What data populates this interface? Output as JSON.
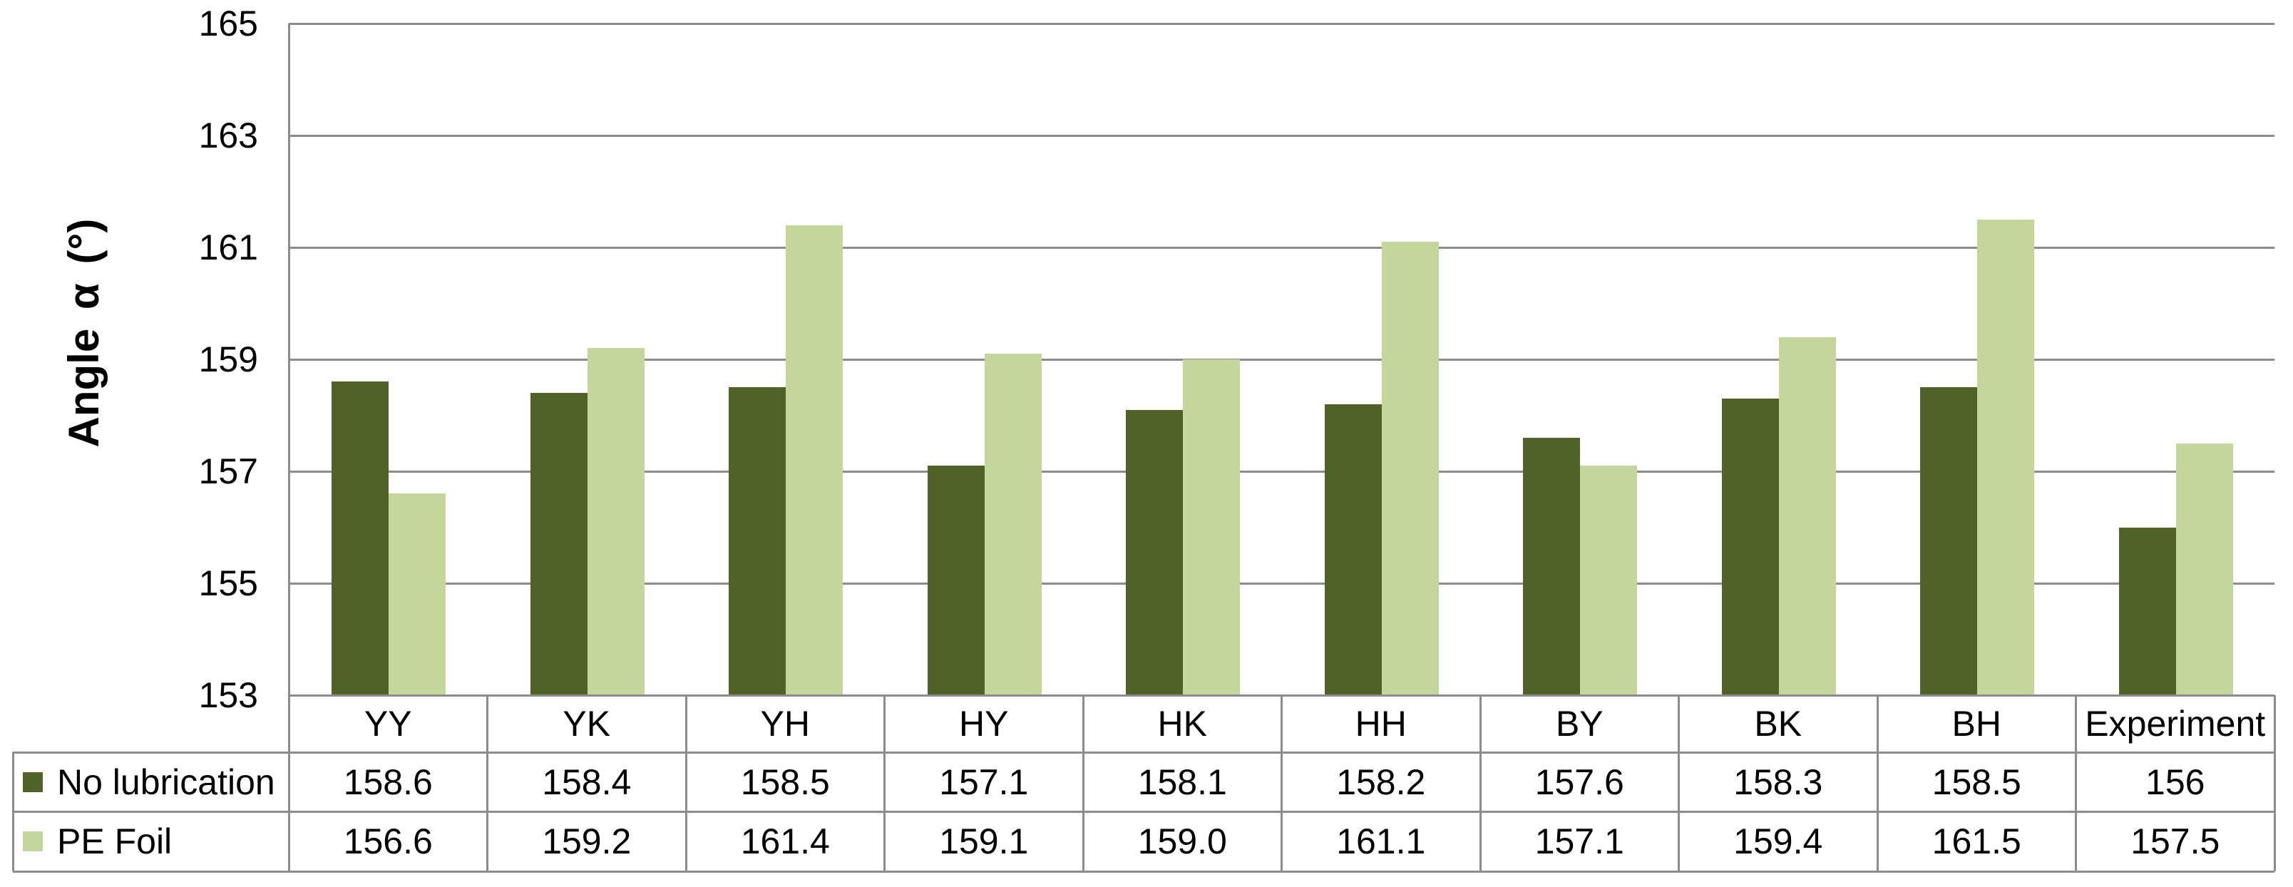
{
  "chart_data": {
    "type": "bar",
    "title": "",
    "xlabel": "",
    "ylabel": "Angle α (°)",
    "ylim": [
      153,
      165
    ],
    "yticks": [
      153,
      155,
      157,
      159,
      161,
      163,
      165
    ],
    "grid": "horizontal major gridlines",
    "legend_position": "data table row headers (left)",
    "categories": [
      "YY",
      "YK",
      "YH",
      "HY",
      "HK",
      "HH",
      "BY",
      "BK",
      "BH",
      "Experiment"
    ],
    "series": [
      {
        "name": "No lubrication",
        "color": "#4F6228",
        "values": [
          158.6,
          158.4,
          158.5,
          157.1,
          158.1,
          158.2,
          157.6,
          158.3,
          158.5,
          156
        ],
        "display": [
          "158.6",
          "158.4",
          "158.5",
          "157.1",
          "158.1",
          "158.2",
          "157.6",
          "158.3",
          "158.5",
          "156"
        ]
      },
      {
        "name": "PE Foil",
        "color": "#C3D69B",
        "values": [
          156.6,
          159.2,
          161.4,
          159.1,
          159.0,
          161.1,
          157.1,
          159.4,
          161.5,
          157.5
        ],
        "display": [
          "156.6",
          "159.2",
          "161.4",
          "159.1",
          "159.0",
          "161.1",
          "157.1",
          "159.4",
          "161.5",
          "157.5"
        ]
      }
    ]
  },
  "colors": {
    "background": "#FFFFFF",
    "gridline": "#8C8C8C",
    "table_border": "#8C8C8C",
    "text": "#000000",
    "series_no_lubrication": "#4F6228",
    "series_pe_foil": "#C3D69B"
  }
}
